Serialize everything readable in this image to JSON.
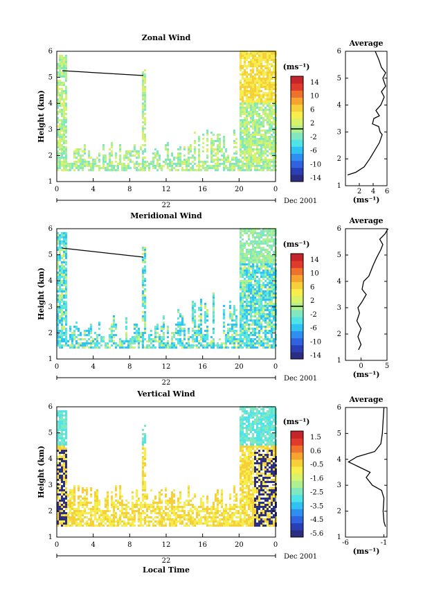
{
  "colors": {
    "wind_scale": [
      "#2b2d80",
      "#2a3fb6",
      "#2f63e0",
      "#2f8ff0",
      "#2fc2f2",
      "#4fe4e8",
      "#7fe8c0",
      "#aef08f",
      "#d7f26b",
      "#f6ee4a",
      "#f7cf38",
      "#f7a330",
      "#f0712c",
      "#e03a2a",
      "#c4242a"
    ]
  },
  "chart_data": [
    {
      "type": "heatmap",
      "title": "Zonal Wind",
      "ylabel": "Height (km)",
      "x_ticks": [
        "0",
        "4",
        "8",
        "12",
        "16",
        "20",
        "0"
      ],
      "y_ticks": [
        "1",
        "2",
        "3",
        "4",
        "5",
        "6"
      ],
      "date_label": "22",
      "month_label": "Dec 2001",
      "colorbar_title": "(ms⁻¹)",
      "colorbar_ticks": [
        "14",
        "10",
        "6",
        "2",
        "-2",
        "-6",
        "-10",
        "-14"
      ],
      "zero_line": 0,
      "profile": {
        "title": "Average",
        "xlabel": "(ms⁻¹)",
        "x_ticks": [
          "2",
          "4",
          "6"
        ],
        "xlim": [
          0,
          6
        ],
        "y_ticks": [
          "1",
          "2",
          "3",
          "4",
          "5",
          "6"
        ],
        "ylim": [
          1,
          6
        ],
        "points": [
          [
            0.3,
            1.4
          ],
          [
            1.5,
            1.5
          ],
          [
            2.7,
            1.7
          ],
          [
            3.5,
            2.0
          ],
          [
            4.2,
            2.3
          ],
          [
            4.9,
            2.6
          ],
          [
            5.3,
            2.9
          ],
          [
            5.0,
            3.0
          ],
          [
            4.8,
            3.2
          ],
          [
            3.9,
            3.3
          ],
          [
            4.1,
            3.5
          ],
          [
            4.9,
            3.6
          ],
          [
            4.4,
            3.8
          ],
          [
            5.1,
            4.0
          ],
          [
            5.6,
            4.3
          ],
          [
            5.2,
            4.5
          ],
          [
            5.8,
            4.7
          ],
          [
            5.4,
            5.0
          ],
          [
            5.8,
            5.2
          ],
          [
            5.2,
            5.4
          ],
          [
            4.8,
            5.7
          ],
          [
            4.3,
            6.0
          ]
        ]
      }
    },
    {
      "type": "heatmap",
      "title": "Meridional Wind",
      "ylabel": "Height (km)",
      "x_ticks": [
        "0",
        "4",
        "8",
        "12",
        "16",
        "20",
        "0"
      ],
      "y_ticks": [
        "1",
        "2",
        "3",
        "4",
        "5",
        "6"
      ],
      "date_label": "22",
      "month_label": "Dec 2001",
      "colorbar_title": "(ms⁻¹)",
      "colorbar_ticks": [
        "14",
        "10",
        "6",
        "2",
        "-2",
        "-6",
        "-10",
        "-14"
      ],
      "zero_line": 0,
      "profile": {
        "title": "Average",
        "xlabel": "(ms⁻¹)",
        "x_ticks": [
          "0",
          "5"
        ],
        "xlim": [
          -3,
          5
        ],
        "y_ticks": [
          "1",
          "2",
          "3",
          "4",
          "5",
          "6"
        ],
        "ylim": [
          1,
          6
        ],
        "points": [
          [
            -0.5,
            1.4
          ],
          [
            0.0,
            1.6
          ],
          [
            -0.6,
            1.9
          ],
          [
            0.0,
            2.2
          ],
          [
            -0.8,
            2.5
          ],
          [
            -0.3,
            2.8
          ],
          [
            -0.6,
            3.0
          ],
          [
            0.1,
            3.2
          ],
          [
            1.0,
            3.5
          ],
          [
            0.2,
            3.7
          ],
          [
            0.5,
            4.0
          ],
          [
            1.5,
            4.2
          ],
          [
            2.3,
            4.6
          ],
          [
            3.0,
            4.9
          ],
          [
            3.8,
            5.2
          ],
          [
            4.2,
            5.4
          ],
          [
            3.6,
            5.6
          ],
          [
            4.6,
            5.8
          ],
          [
            5.2,
            6.0
          ]
        ]
      }
    },
    {
      "type": "heatmap",
      "title": "Vertical Wind",
      "ylabel": "Height (km)",
      "xlabel": "Local Time",
      "x_ticks": [
        "0",
        "4",
        "8",
        "12",
        "16",
        "20",
        "0"
      ],
      "y_ticks": [
        "1",
        "2",
        "3",
        "4",
        "5",
        "6"
      ],
      "date_label": "22",
      "month_label": "Dec 2001",
      "colorbar_title": "(ms⁻¹)",
      "colorbar_ticks": [
        "1.5",
        "0.6",
        "-0.5",
        "-1.6",
        "-2.5",
        "-3.5",
        "-4.5",
        "-5.6"
      ],
      "zero_line": null,
      "profile": {
        "title": "Average",
        "xlabel": "(ms⁻¹)",
        "x_ticks": [
          "-6",
          "-1"
        ],
        "xlim": [
          -6,
          -0.6
        ],
        "y_ticks": [
          "1",
          "2",
          "3",
          "4",
          "5",
          "6"
        ],
        "ylim": [
          1,
          6
        ],
        "points": [
          [
            -0.8,
            1.4
          ],
          [
            -1.0,
            1.6
          ],
          [
            -1.1,
            2.0
          ],
          [
            -1.0,
            2.5
          ],
          [
            -1.3,
            2.8
          ],
          [
            -2.5,
            3.0
          ],
          [
            -3.3,
            3.3
          ],
          [
            -2.8,
            3.5
          ],
          [
            -4.2,
            3.7
          ],
          [
            -5.6,
            3.9
          ],
          [
            -4.5,
            4.1
          ],
          [
            -2.2,
            4.3
          ],
          [
            -1.4,
            4.6
          ],
          [
            -1.2,
            5.0
          ],
          [
            -1.1,
            5.5
          ],
          [
            -1.0,
            6.0
          ]
        ]
      }
    }
  ]
}
